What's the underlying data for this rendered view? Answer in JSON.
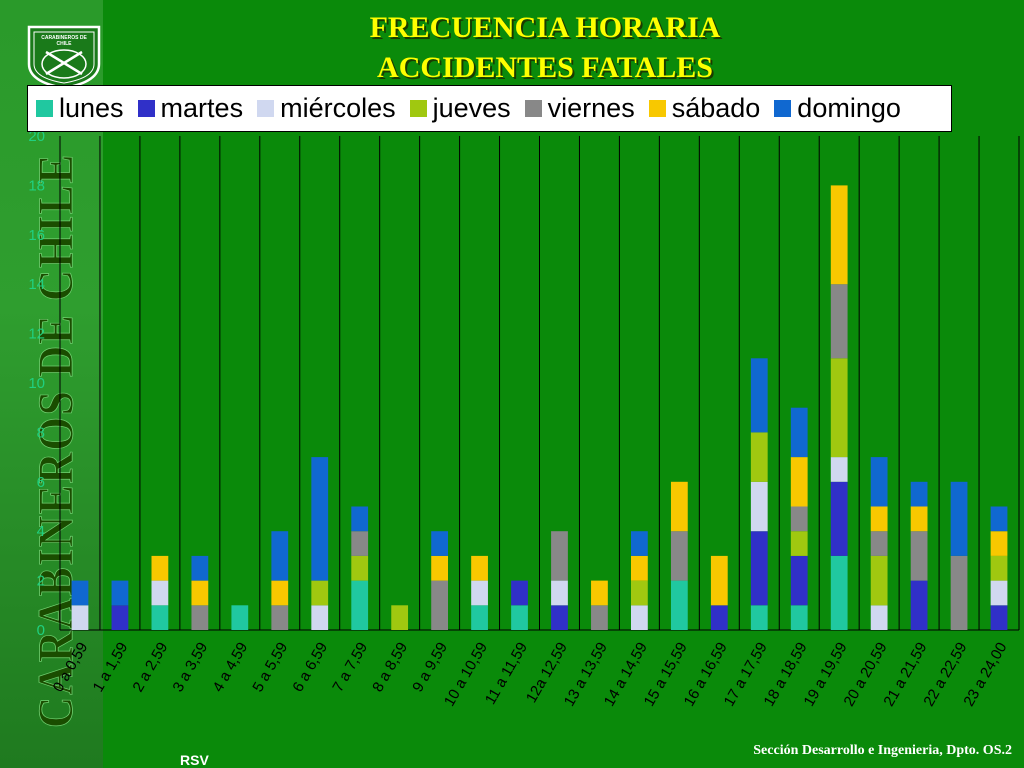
{
  "title_lines": [
    "FRECUENCIA HORARIA",
    "ACCIDENTES FATALES"
  ],
  "sidebar_text": "CARABINEROS DE CHILE",
  "logo_text": "CARABINEROS DE CHILE",
  "footer": "Sección Desarrollo e Ingenieria, Dpto. OS.2",
  "footer_left": "RSV",
  "colors": {
    "background": "#0a8a0a",
    "title": "#ffff00",
    "lunes": "#20c8a0",
    "martes": "#3030c8",
    "miercoles": "#d0d8f0",
    "jueves": "#a0c810",
    "viernes": "#888888",
    "sabado": "#f8c800",
    "domingo": "#1068d0"
  },
  "chart_data": {
    "type": "bar",
    "stacked": true,
    "ylim": [
      0,
      20
    ],
    "yticks": [
      0,
      2,
      4,
      6,
      8,
      10,
      12,
      14,
      16,
      18,
      20
    ],
    "grid": "vertical lines between categories",
    "legend_position": "top",
    "categories": [
      "0 a 0,59",
      "1 a 1,59",
      "2 a 2,59",
      "3 a 3,59",
      "4 a 4,59",
      "5 a 5,59",
      "6 a 6,59",
      "7 a 7,59",
      "8 a 8,59",
      "9 a 9,59",
      "10 a 10,59",
      "11 a 11,59",
      "12a 12,59",
      "13 a 13,59",
      "14 a 14,59",
      "15 a 15,59",
      "16 a 16,59",
      "17 a 17,59",
      "18 a 18,59",
      "19 a 19,59",
      "20 a 20,59",
      "21 a 21,59",
      "22 a 22,59",
      "23 a 24,00"
    ],
    "series": [
      {
        "name": "lunes",
        "color": "#20c8a0",
        "values": [
          0,
          0,
          1,
          0,
          1,
          0,
          0,
          2,
          0,
          0,
          1,
          1,
          0,
          0,
          0,
          2,
          0,
          1,
          1,
          3,
          0,
          0,
          0,
          0
        ]
      },
      {
        "name": "martes",
        "color": "#3030c8",
        "values": [
          0,
          1,
          0,
          0,
          0,
          0,
          0,
          0,
          0,
          0,
          0,
          1,
          1,
          0,
          0,
          0,
          1,
          3,
          2,
          3,
          0,
          2,
          0,
          1
        ]
      },
      {
        "name": "miércoles",
        "color": "#d0d8f0",
        "values": [
          1,
          0,
          1,
          0,
          0,
          0,
          1,
          0,
          0,
          0,
          1,
          0,
          1,
          0,
          1,
          0,
          0,
          2,
          0,
          1,
          1,
          0,
          0,
          1
        ]
      },
      {
        "name": "jueves",
        "color": "#a0c810",
        "values": [
          0,
          0,
          0,
          0,
          0,
          0,
          1,
          1,
          1,
          0,
          0,
          0,
          0,
          0,
          1,
          0,
          0,
          2,
          1,
          4,
          2,
          0,
          0,
          1
        ]
      },
      {
        "name": "viernes",
        "color": "#888888",
        "values": [
          0,
          0,
          0,
          1,
          0,
          1,
          0,
          1,
          0,
          2,
          0,
          0,
          2,
          1,
          0,
          2,
          0,
          0,
          1,
          3,
          1,
          2,
          3,
          0
        ]
      },
      {
        "name": "sábado",
        "color": "#f8c800",
        "values": [
          0,
          0,
          1,
          1,
          0,
          1,
          0,
          0,
          0,
          1,
          1,
          0,
          0,
          1,
          1,
          2,
          2,
          0,
          2,
          4,
          1,
          1,
          0,
          1
        ]
      },
      {
        "name": "domingo",
        "color": "#1068d0",
        "values": [
          1,
          1,
          0,
          1,
          0,
          2,
          5,
          1,
          0,
          1,
          0,
          0,
          0,
          0,
          1,
          0,
          0,
          3,
          2,
          0,
          2,
          1,
          3,
          1
        ]
      }
    ]
  }
}
